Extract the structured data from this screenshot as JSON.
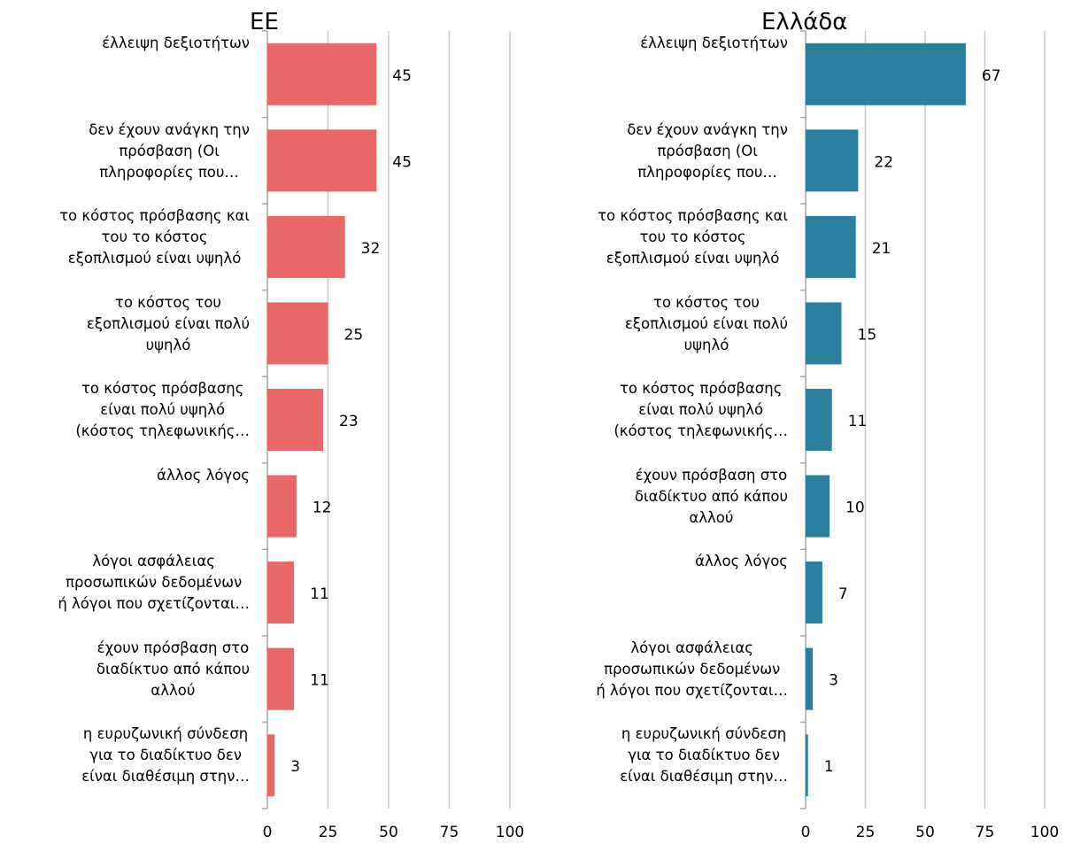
{
  "chart_data": [
    {
      "type": "bar",
      "title": "ΕΕ",
      "color": "#e96767",
      "categories": [
        "έλλειψη δεξιοτήτων",
        "δεν έχουν ανάγκη την\nπρόσβαση (Οι\nπληροφορίες που…",
        "το κόστος πρόσβασης και\nτου το κόστος\nεξοπλισμού είναι υψηλό",
        "το κόστος του\nεξοπλισμού είναι πολύ\nυψηλό",
        "το κόστος πρόσβασης\nείναι πολύ υψηλό\n(κόστος τηλεφωνικής…",
        "άλλος λόγος",
        "λόγοι ασφάλειας\nπροσωπικών δεδομένων\nή λόγοι που σχετίζονται…",
        "έχουν πρόσβαση στο\nδιαδίκτυο από κάπου\nαλλού",
        "η ευρυζωνική σύνδεση\nγια το διαδίκτυο δεν\nείναι διαθέσιμη στην…"
      ],
      "values": [
        45,
        45,
        32,
        25,
        23,
        12,
        11,
        11,
        3
      ],
      "xlim": [
        0,
        100
      ],
      "xticks": [
        0,
        25,
        50,
        75,
        100
      ],
      "grid": true
    },
    {
      "type": "bar",
      "title": "Ελλάδα",
      "color": "#2b7f9e",
      "categories": [
        "έλλειψη δεξιοτήτων",
        "δεν έχουν ανάγκη την\nπρόσβαση (Οι\nπληροφορίες που…",
        "το κόστος πρόσβασης και\nτου το κόστος\nεξοπλισμού είναι υψηλό",
        "το κόστος του\nεξοπλισμού είναι πολύ\nυψηλό",
        "το κόστος πρόσβασης\nείναι πολύ υψηλό\n(κόστος τηλεφωνικής…",
        "έχουν πρόσβαση στο\nδιαδίκτυο από κάπου\nαλλού",
        "άλλος λόγος",
        "λόγοι ασφάλειας\nπροσωπικών δεδομένων\nή λόγοι που σχετίζονται…",
        "η ευρυζωνική σύνδεση\nγια το διαδίκτυο δεν\nείναι διαθέσιμη στην…"
      ],
      "values": [
        67,
        22,
        21,
        15,
        11,
        10,
        7,
        3,
        1
      ],
      "xlim": [
        0,
        100
      ],
      "xticks": [
        0,
        25,
        50,
        75,
        100
      ],
      "grid": true
    }
  ]
}
